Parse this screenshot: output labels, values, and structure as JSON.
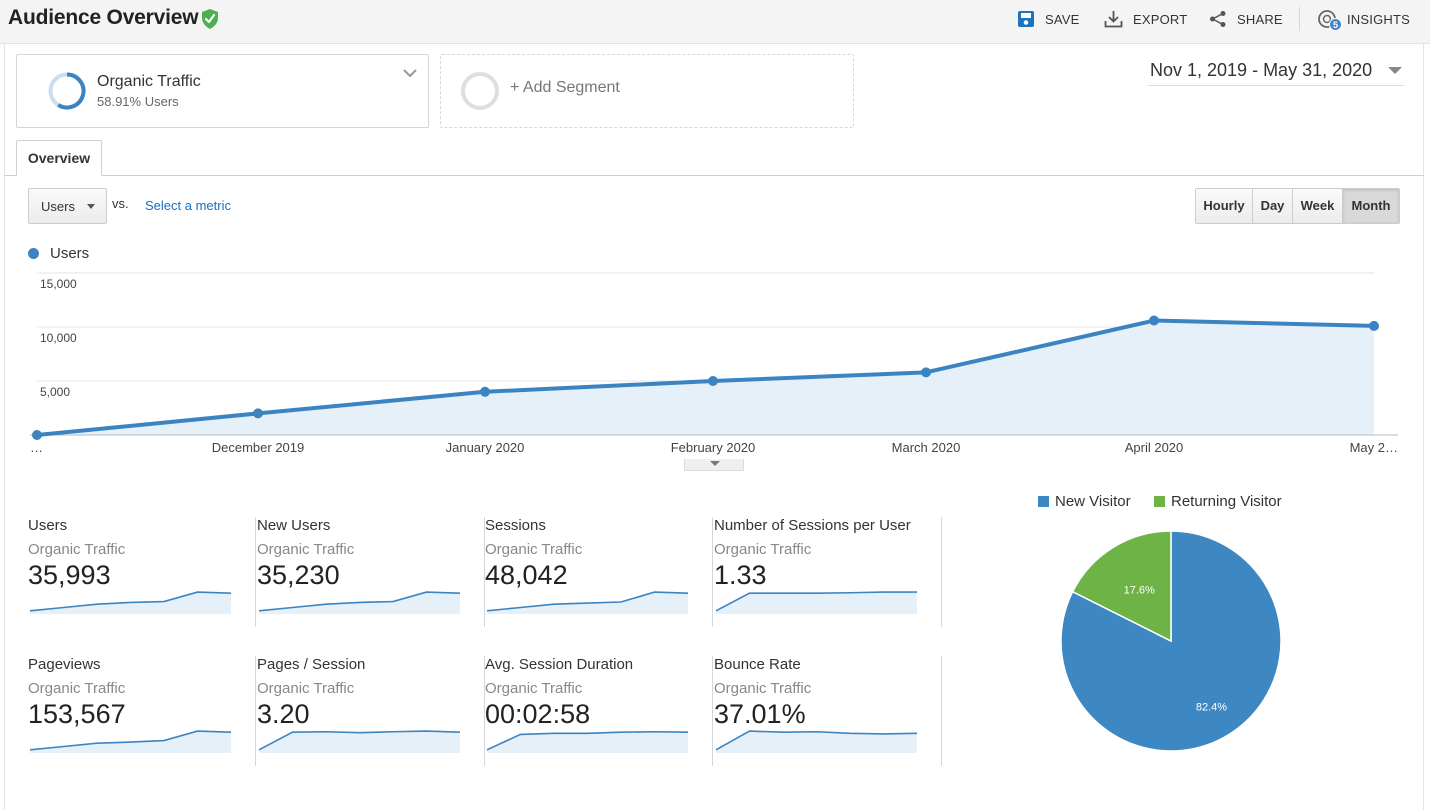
{
  "header": {
    "title": "Audience Overview",
    "actions": {
      "save": "SAVE",
      "export": "EXPORT",
      "share": "SHARE",
      "insights": "INSIGHTS",
      "insights_badge": "5"
    }
  },
  "segments": {
    "active": {
      "name": "Organic Traffic",
      "detail": "58.91% Users"
    },
    "add_label": "+ Add Segment"
  },
  "date_range": "Nov 1, 2019 - May 31, 2020",
  "tabs": [
    {
      "label": "Overview",
      "active": true
    }
  ],
  "controls": {
    "metric": "Users",
    "vs_label": "vs.",
    "select_metric": "Select a metric",
    "granularity": [
      {
        "label": "Hourly",
        "active": false
      },
      {
        "label": "Day",
        "active": false
      },
      {
        "label": "Week",
        "active": false
      },
      {
        "label": "Month",
        "active": true
      }
    ]
  },
  "chart_data": [
    {
      "type": "area",
      "title": "",
      "legend": [
        "Users"
      ],
      "x": [
        "…",
        "December 2019",
        "January 2020",
        "February 2020",
        "March 2020",
        "April 2020",
        "May 2…"
      ],
      "series": [
        {
          "name": "Users",
          "values": [
            0,
            2000,
            4000,
            5000,
            5800,
            10600,
            10100
          ]
        }
      ],
      "y_ticks": [
        "15,000",
        "10,000",
        "5,000"
      ],
      "ylim": [
        0,
        15000
      ],
      "grid": true,
      "colors": {
        "line": "#3b84c1",
        "fill": "#e6f0f9"
      }
    },
    {
      "type": "pie",
      "legend": [
        "New Visitor",
        "Returning Visitor"
      ],
      "slices": [
        {
          "label": "New Visitor",
          "value": 82.4,
          "text": "82.4%",
          "color": "#3d88c3"
        },
        {
          "label": "Returning Visitor",
          "value": 17.6,
          "text": "17.6%",
          "color": "#6db346"
        }
      ],
      "legend_position": "top"
    }
  ],
  "scorecards": [
    {
      "title": "Users",
      "segment": "Organic Traffic",
      "value": "35,993",
      "spark": [
        0.1,
        0.25,
        0.4,
        0.48,
        0.52,
        0.95,
        0.9
      ]
    },
    {
      "title": "New Users",
      "segment": "Organic Traffic",
      "value": "35,230",
      "spark": [
        0.1,
        0.25,
        0.4,
        0.48,
        0.52,
        0.95,
        0.9
      ]
    },
    {
      "title": "Sessions",
      "segment": "Organic Traffic",
      "value": "48,042",
      "spark": [
        0.1,
        0.25,
        0.4,
        0.45,
        0.5,
        0.95,
        0.9
      ]
    },
    {
      "title": "Number of Sessions per User",
      "segment": "Organic Traffic",
      "value": "1.33",
      "spark": [
        0.1,
        0.9,
        0.9,
        0.9,
        0.92,
        0.95,
        0.95
      ]
    },
    {
      "title": "Pageviews",
      "segment": "Organic Traffic",
      "value": "153,567",
      "spark": [
        0.1,
        0.25,
        0.4,
        0.45,
        0.52,
        0.95,
        0.9
      ]
    },
    {
      "title": "Pages / Session",
      "segment": "Organic Traffic",
      "value": "3.20",
      "spark": [
        0.1,
        0.9,
        0.92,
        0.88,
        0.92,
        0.95,
        0.9
      ]
    },
    {
      "title": "Avg. Session Duration",
      "segment": "Organic Traffic",
      "value": "00:02:58",
      "spark": [
        0.1,
        0.8,
        0.85,
        0.85,
        0.9,
        0.92,
        0.9
      ]
    },
    {
      "title": "Bounce Rate",
      "segment": "Organic Traffic",
      "value": "37.01%",
      "spark": [
        0.1,
        0.95,
        0.9,
        0.92,
        0.85,
        0.82,
        0.85
      ]
    }
  ]
}
